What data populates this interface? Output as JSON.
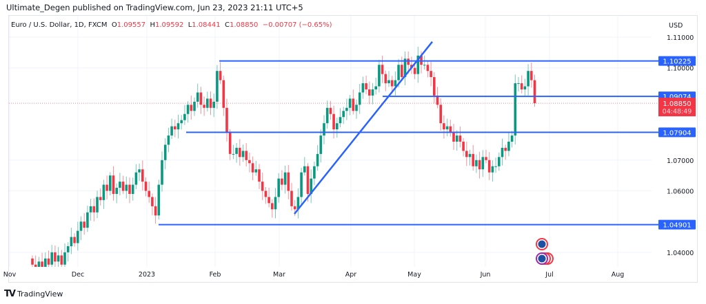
{
  "header": {
    "published": "Ultimate_Degen published on TradingView.com, Jun 23, 2023 21:11 UTC+5"
  },
  "legend": {
    "symbol": "Euro / U.S. Dollar, 1D, FXCM",
    "o_label": "O",
    "o": "1.09557",
    "h_label": "H",
    "h": "1.09592",
    "l_label": "L",
    "l": "1.08441",
    "c_label": "C",
    "c": "1.08850",
    "change": "−0.00707 (−0.65%)"
  },
  "price_axis": {
    "currency": "USD",
    "ticks": [
      "1.11000",
      "1.10000",
      "1.07000",
      "1.06000",
      "1.04000"
    ],
    "tick_values": [
      1.11,
      1.1,
      1.07,
      1.06,
      1.04
    ]
  },
  "time_axis": {
    "labels": [
      "Nov",
      "Dec",
      "2023",
      "Feb",
      "Mar",
      "Apr",
      "May",
      "Jun",
      "Jul",
      "Aug"
    ]
  },
  "levels": [
    {
      "label": "1.10225",
      "value": 1.10225
    },
    {
      "label": "1.09074",
      "value": 1.09074
    },
    {
      "label": "1.07904",
      "value": 1.07904
    },
    {
      "label": "1.04901",
      "value": 1.04901
    }
  ],
  "last_price": {
    "label": "1.08850",
    "value": 1.0885,
    "countdown": "04:48:49"
  },
  "trendline": {
    "from_price": 1.0525,
    "to_price": 1.1085
  },
  "colors": {
    "up": "#089981",
    "down": "#f23645",
    "level": "#2962ff",
    "grid": "#f0f3fa"
  },
  "chart_data": {
    "type": "candlestick",
    "closes": [
      1.036,
      1.034,
      1.037,
      1.035,
      1.038,
      1.036,
      1.04,
      1.037,
      1.039,
      1.036,
      1.04,
      1.042,
      1.045,
      1.043,
      1.047,
      1.05,
      1.048,
      1.053,
      1.055,
      1.053,
      1.058,
      1.057,
      1.062,
      1.06,
      1.065,
      1.059,
      1.061,
      1.063,
      1.06,
      1.062,
      1.059,
      1.062,
      1.066,
      1.067,
      1.063,
      1.06,
      1.058,
      1.055,
      1.052,
      1.062,
      1.07,
      1.075,
      1.078,
      1.081,
      1.08,
      1.082,
      1.083,
      1.085,
      1.088,
      1.086,
      1.089,
      1.092,
      1.088,
      1.087,
      1.09,
      1.087,
      1.089,
      1.099,
      1.096,
      1.087,
      1.079,
      1.072,
      1.072,
      1.074,
      1.071,
      1.073,
      1.07,
      1.069,
      1.066,
      1.067,
      1.063,
      1.06,
      1.058,
      1.056,
      1.054,
      1.058,
      1.064,
      1.062,
      1.066,
      1.06,
      1.055,
      1.054,
      1.058,
      1.066,
      1.068,
      1.059,
      1.064,
      1.068,
      1.072,
      1.078,
      1.082,
      1.087,
      1.085,
      1.08,
      1.082,
      1.084,
      1.086,
      1.087,
      1.09,
      1.086,
      1.088,
      1.092,
      1.095,
      1.093,
      1.091,
      1.093,
      1.094,
      1.101,
      1.098,
      1.095,
      1.096,
      1.094,
      1.096,
      1.101,
      1.097,
      1.103,
      1.101,
      1.1,
      1.098,
      1.104,
      1.101,
      1.101,
      1.099,
      1.097,
      1.091,
      1.088,
      1.082,
      1.08,
      1.081,
      1.079,
      1.076,
      1.078,
      1.076,
      1.073,
      1.071,
      1.072,
      1.068,
      1.07,
      1.067,
      1.071,
      1.07,
      1.066,
      1.068,
      1.068,
      1.071,
      1.074,
      1.073,
      1.076,
      1.078,
      1.095,
      1.095,
      1.093,
      1.094,
      1.099,
      1.096,
      1.0885
    ]
  }
}
